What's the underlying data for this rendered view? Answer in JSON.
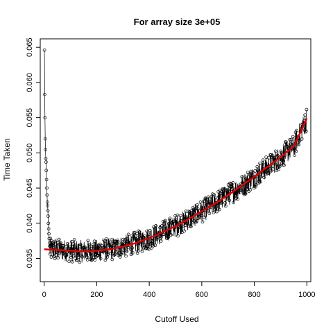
{
  "chart_data": {
    "type": "scatter",
    "title": "For array size 3e+05",
    "xlabel": "Cutoff Used",
    "ylabel": "Time Taken",
    "xlim": [
      -15,
      1015
    ],
    "ylim": [
      0.0317,
      0.0662
    ],
    "xticks": [
      0,
      200,
      400,
      600,
      800,
      1000
    ],
    "yticks": [
      0.035,
      0.04,
      0.045,
      0.05,
      0.055,
      0.06,
      0.065
    ],
    "ytick_labels": [
      "0.035",
      "0.040",
      "0.045",
      "0.050",
      "0.055",
      "0.060",
      "0.065"
    ],
    "grid": false,
    "series": [
      {
        "style": "points-connected",
        "point_color": "#000000",
        "x_range": [
          1,
          1000
        ],
        "x_step": 1,
        "early_values": [
          0.0646,
          0.0583,
          0.055,
          0.052,
          0.0505,
          0.0492,
          0.0487,
          0.0475,
          0.0462,
          0.045,
          0.044,
          0.043,
          0.0425,
          0.0418,
          0.041,
          0.04,
          0.0392,
          0.0385,
          0.0378,
          0.0372
        ],
        "values_estimated_trend": "fitted smooth trend plus noise (~±0.0015)"
      },
      {
        "style": "smooth-line",
        "line_color": "#dd0000",
        "x": [
          0,
          50,
          100,
          150,
          200,
          250,
          300,
          350,
          400,
          450,
          500,
          550,
          600,
          650,
          700,
          750,
          800,
          850,
          900,
          950,
          1000
        ],
        "values": [
          0.0363,
          0.0362,
          0.0361,
          0.036,
          0.0361,
          0.0363,
          0.0367,
          0.0372,
          0.0379,
          0.0387,
          0.0396,
          0.0406,
          0.0417,
          0.0428,
          0.044,
          0.0453,
          0.0466,
          0.048,
          0.0494,
          0.0509,
          0.0549
        ]
      }
    ]
  }
}
